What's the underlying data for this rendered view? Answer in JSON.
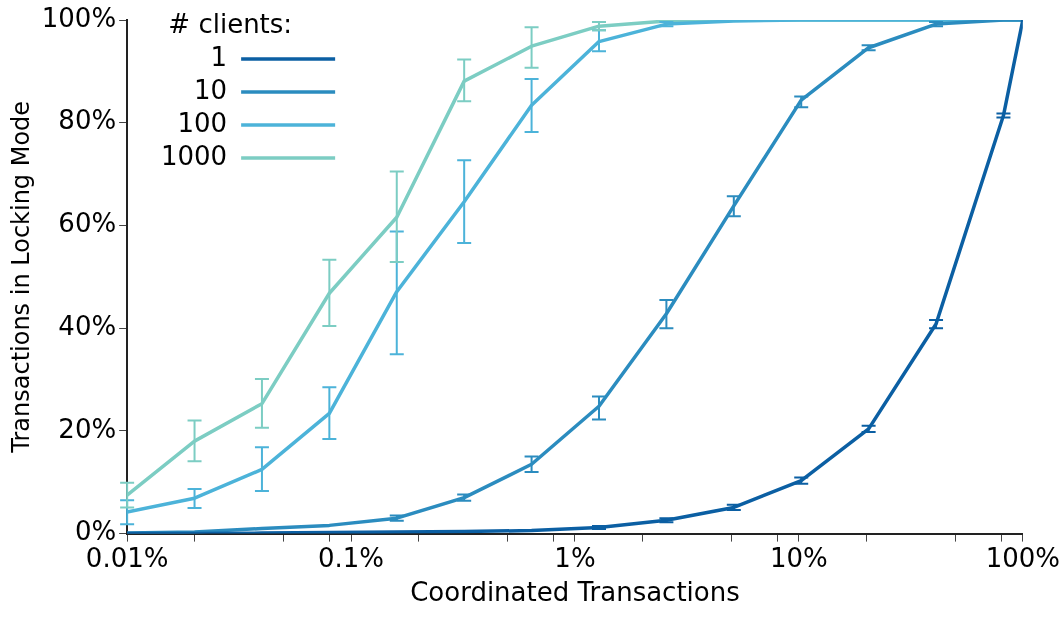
{
  "chart_data": {
    "type": "line",
    "xlabel": "Coordinated Transactions",
    "ylabel": "Transactions in Locking Mode",
    "legend_title": "# clients:",
    "legend": "top left",
    "grid": false,
    "log": "x",
    "marker": "none",
    "line_style": "solid",
    "x": [
      0.01,
      0.02,
      0.04,
      0.08,
      0.16,
      0.32,
      0.64,
      1.28,
      2.56,
      5.12,
      10.24,
      20.48,
      40.96,
      81.92,
      100
    ],
    "xlim": [
      0.01,
      100
    ],
    "xticks": [
      {
        "value": 0.01,
        "label": "0.01%"
      },
      {
        "value": 0.02,
        "label": null
      },
      {
        "value": 0.05,
        "label": null
      },
      {
        "value": 0.08,
        "label": null
      },
      {
        "value": 0.1,
        "label": "0.1%"
      },
      {
        "value": 0.2,
        "label": null
      },
      {
        "value": 0.5,
        "label": null
      },
      {
        "value": 0.8,
        "label": null
      },
      {
        "value": 1,
        "label": "1%"
      },
      {
        "value": 2,
        "label": null
      },
      {
        "value": 5,
        "label": null
      },
      {
        "value": 8,
        "label": null
      },
      {
        "value": 10,
        "label": "10%"
      },
      {
        "value": 20,
        "label": null
      },
      {
        "value": 50,
        "label": null
      },
      {
        "value": 80,
        "label": null
      },
      {
        "value": 100,
        "label": "100%"
      }
    ],
    "ylim": [
      0,
      100
    ],
    "yticks": [
      {
        "value": 0,
        "label": "0%"
      },
      {
        "value": 20,
        "label": "20%"
      },
      {
        "value": 40,
        "label": "40%"
      },
      {
        "value": 60,
        "label": "60%"
      },
      {
        "value": 80,
        "label": "80%"
      },
      {
        "value": 100,
        "label": "100%"
      }
    ],
    "series": [
      {
        "name": "1",
        "color": "#0b5fa3",
        "values": [
          0,
          0,
          0.1,
          0.2,
          0.3,
          0.4,
          0.6,
          1.2,
          2.6,
          5.1,
          10.3,
          20.4,
          40.8,
          81.4,
          100
        ],
        "errors": [
          null,
          null,
          null,
          null,
          null,
          null,
          null,
          [
            0.9,
            1.5
          ],
          [
            2.2,
            3
          ],
          [
            4.6,
            5.6
          ],
          [
            9.7,
            10.9
          ],
          [
            19.8,
            21
          ],
          [
            40,
            41.6
          ],
          [
            81,
            81.8
          ],
          null
        ]
      },
      {
        "name": "10",
        "color": "#2b8cbf",
        "values": [
          0.1,
          0.3,
          1,
          1.6,
          3,
          7,
          13.5,
          24.8,
          42.8,
          63.8,
          84.4,
          94.6,
          99.2,
          100,
          100
        ],
        "errors": [
          null,
          null,
          null,
          null,
          [
            2.5,
            3.5
          ],
          [
            6.4,
            7.6
          ],
          [
            12,
            15
          ],
          [
            22.2,
            26.7
          ],
          [
            40,
            45.5
          ],
          [
            61.8,
            65.7
          ],
          [
            83,
            85.1
          ],
          [
            94.1,
            95.1
          ],
          [
            98.8,
            99.6
          ],
          null,
          null
        ]
      },
      {
        "name": "100",
        "color": "#4cb3d9",
        "values": [
          4.2,
          6.9,
          12.5,
          23.4,
          47.1,
          64.6,
          83.4,
          95.8,
          99.2,
          99.8,
          100,
          100,
          100,
          100,
          100
        ],
        "errors": [
          [
            1.8,
            6.5
          ],
          [
            5,
            8.7
          ],
          [
            8.3,
            16.8
          ],
          [
            18.4,
            28.5
          ],
          [
            34.9,
            58.8
          ],
          [
            56.6,
            72.7
          ],
          [
            78.2,
            88.5
          ],
          [
            93.9,
            98
          ],
          [
            98.8,
            99.6
          ],
          null,
          null,
          null,
          null,
          null,
          null
        ]
      },
      {
        "name": "1000",
        "color": "#7ccdc3",
        "values": [
          7.5,
          18,
          25.3,
          46.8,
          61.6,
          88.1,
          94.9,
          98.8,
          99.8,
          100,
          100,
          100,
          100,
          100,
          100
        ],
        "errors": [
          [
            5.1,
            9.9
          ],
          [
            14.1,
            22
          ],
          [
            20.6,
            30.1
          ],
          [
            40.4,
            53.3
          ],
          [
            52.9,
            70.5
          ],
          [
            84.2,
            92.3
          ],
          [
            90.7,
            98.6
          ],
          [
            98,
            99.6
          ],
          null,
          null,
          null,
          null,
          null,
          null,
          null
        ]
      }
    ]
  }
}
